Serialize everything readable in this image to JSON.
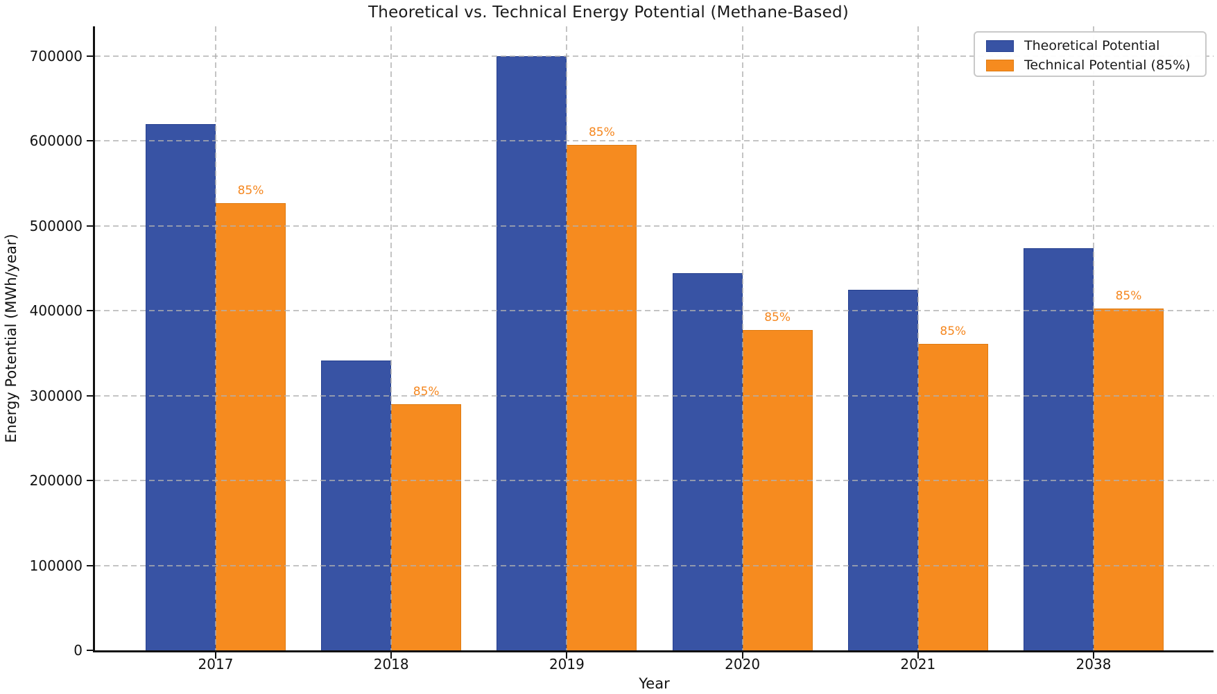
{
  "chart_data": {
    "type": "bar",
    "title": "Theoretical vs. Technical Energy Potential (Methane-Based)",
    "xlabel": "Year",
    "ylabel": "Energy Potential (MWh/year)",
    "categories": [
      "2017",
      "2018",
      "2019",
      "2020",
      "2021",
      "2038"
    ],
    "series": [
      {
        "name": "Theoretical Potential",
        "color": "#3853a4",
        "edge_color": "#26408f",
        "values": [
          620000,
          341000,
          700000,
          444000,
          425000,
          474000
        ]
      },
      {
        "name": "Technical Potential (85%)",
        "color": "#f68b1f",
        "edge_color": "#de7a10",
        "values": [
          527000,
          289850,
          595000,
          377400,
          361250,
          402900
        ],
        "bar_label": "85%",
        "bar_label_color": "#f5871f"
      }
    ],
    "ylim": [
      0,
      735000
    ],
    "yticks": [
      0,
      100000,
      200000,
      300000,
      400000,
      500000,
      600000,
      700000
    ],
    "grid": "dashed gray, x and y, drawn above bars",
    "legend_position": "upper right",
    "spine_color": "#111111",
    "grid_color": "#b0b0b0"
  }
}
